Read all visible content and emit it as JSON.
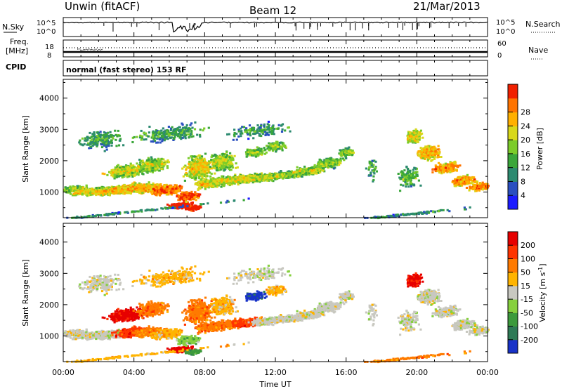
{
  "header": {
    "station": "Unwin (fitACF)",
    "beam": "Beam 12",
    "date": "21/Mar/2013"
  },
  "top_panels": {
    "nsky_label": "N.Sky",
    "nsearch_label": "N.Search",
    "noise_ticks": [
      "10^5",
      "10^0"
    ],
    "freq_label_1": "Freq.",
    "freq_label_2": "[MHz]",
    "freq_ticks": [
      "18",
      "8"
    ],
    "nave_label": "Nave",
    "nave_ticks": [
      "60",
      "0"
    ],
    "cpid_label": "CPID",
    "cpid_text": "normal (fast stereo) 153 RF"
  },
  "chart_data": [
    {
      "type": "heatmap",
      "name": "power",
      "ylabel": "Slant Range [km]",
      "xlabel": "",
      "ylim": [
        180,
        4600
      ],
      "yticks": [
        1000,
        2000,
        3000,
        4000
      ],
      "colorbar": {
        "label": "Power [dB]",
        "range": [
          0,
          32
        ],
        "ticks": [
          4,
          8,
          12,
          16,
          20,
          24,
          28
        ],
        "colors": [
          "#1c1cff",
          "#2a4fc0",
          "#2c8a70",
          "#3aa63a",
          "#7ccc2a",
          "#d8d81a",
          "#ffb000",
          "#ff7400",
          "#f02000"
        ]
      }
    },
    {
      "type": "heatmap",
      "name": "velocity",
      "ylabel": "Slant Range [km]",
      "xlabel": "Time UT",
      "ylim": [
        180,
        4600
      ],
      "yticks": [
        1000,
        2000,
        3000,
        4000
      ],
      "xticks": [
        "00:00",
        "04:00",
        "08:00",
        "12:00",
        "16:00",
        "20:00",
        "00:00"
      ],
      "colorbar": {
        "label": "Velocity [m s^-1]",
        "ticks": [
          "200",
          "100",
          "50",
          "15",
          "-15",
          "-50",
          "-100",
          "-200"
        ],
        "colors": [
          "#1832c8",
          "#2e7a56",
          "#3c9a3c",
          "#86d03e",
          "#c8c8c0",
          "#ffb400",
          "#ff7a00",
          "#ff3400",
          "#e60000"
        ]
      }
    }
  ]
}
